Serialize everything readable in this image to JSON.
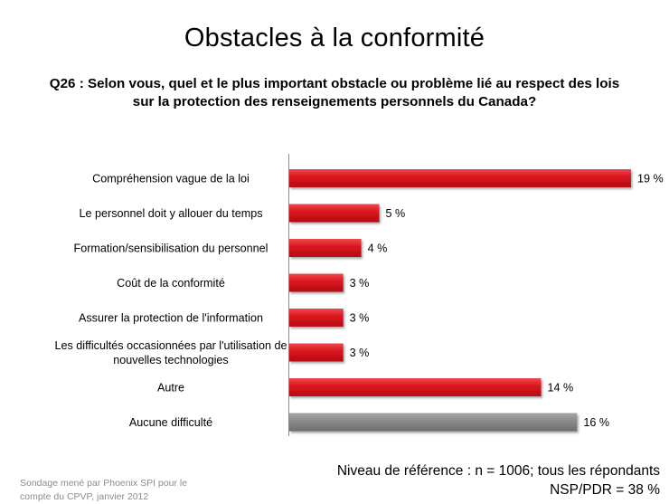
{
  "slide": {
    "title": "Obstacles à la conformité",
    "question_line1": "Q26 : Selon vous, quel et le plus important obstacle ou problème lié au respect des lois",
    "question_line2": "sur la protection des renseignements personnels du Canada?"
  },
  "chart_data": {
    "type": "bar",
    "orientation": "horizontal",
    "title": "",
    "xlabel": "",
    "ylabel": "",
    "xlim": [
      0,
      19
    ],
    "grid": false,
    "categories": [
      [
        "Compréhension vague de la loi"
      ],
      [
        "Le personnel doit y allouer du temps"
      ],
      [
        "Formation/sensibilisation  du personnel"
      ],
      [
        "Coût de la conformité"
      ],
      [
        "Assurer la protection de l'information"
      ],
      [
        "Les difficultés occasionnées par l'utilisation de",
        "nouvelles technologies"
      ],
      [
        "Autre"
      ],
      [
        "Aucune difficulté"
      ]
    ],
    "values": [
      19,
      5,
      4,
      3,
      3,
      3,
      14,
      16
    ],
    "value_labels": [
      "19 %",
      "5 %",
      "4 %",
      "3 %",
      "3 %",
      "3 %",
      "14 %",
      "16 %"
    ],
    "bar_colors": [
      "#e01b24",
      "#e01b24",
      "#e01b24",
      "#e01b24",
      "#e01b24",
      "#e01b24",
      "#e01b24",
      "#8c8c8c"
    ]
  },
  "footer": {
    "base_line1": "Niveau de référence : n = 1006; tous les répondants",
    "base_line2": "NSP/PDR = 38 %",
    "source_line1": "Sondage mené par Phoenix SPI pour le",
    "source_line2": "compte du CPVP, janvier 2012"
  }
}
